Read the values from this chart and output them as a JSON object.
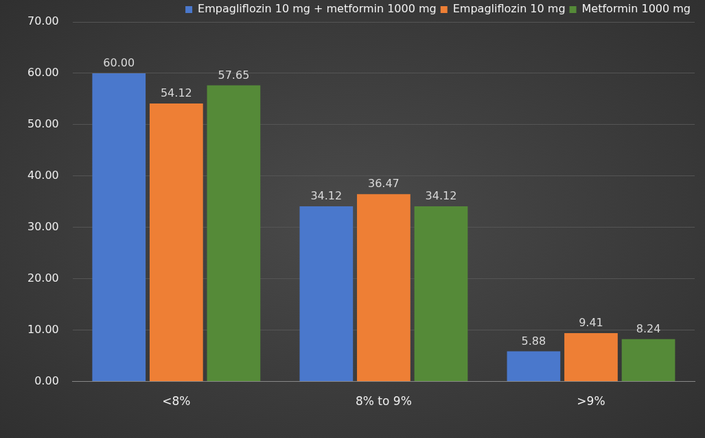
{
  "chart_data": {
    "type": "bar",
    "categories": [
      "<8%",
      "8% to 9%",
      ">9%"
    ],
    "series": [
      {
        "name": "Empagliflozin 10 mg + metformin 1000 mg",
        "color": "#4a78cc",
        "values": [
          60.0,
          34.12,
          5.88
        ],
        "value_labels": [
          "60.00",
          "34.12",
          "5.88"
        ]
      },
      {
        "name": "Empagliflozin 10 mg",
        "color": "#ee7f35",
        "values": [
          54.12,
          36.47,
          9.41
        ],
        "value_labels": [
          "54.12",
          "36.47",
          "9.41"
        ]
      },
      {
        "name": "Metformin 1000 mg",
        "color": "#558a38",
        "values": [
          57.65,
          34.12,
          8.24
        ],
        "value_labels": [
          "57.65",
          "34.12",
          "8.24"
        ]
      }
    ],
    "ylim": [
      0,
      70
    ],
    "yticks": [
      {
        "value": 0,
        "label": "0.00"
      },
      {
        "value": 10,
        "label": "10.00"
      },
      {
        "value": 20,
        "label": "20.00"
      },
      {
        "value": 30,
        "label": "30.00"
      },
      {
        "value": 40,
        "label": "40.00"
      },
      {
        "value": 50,
        "label": "50.00"
      },
      {
        "value": 60,
        "label": "60.00"
      },
      {
        "value": 70,
        "label": "70.00"
      }
    ],
    "grid": "y",
    "legend": "top right"
  }
}
